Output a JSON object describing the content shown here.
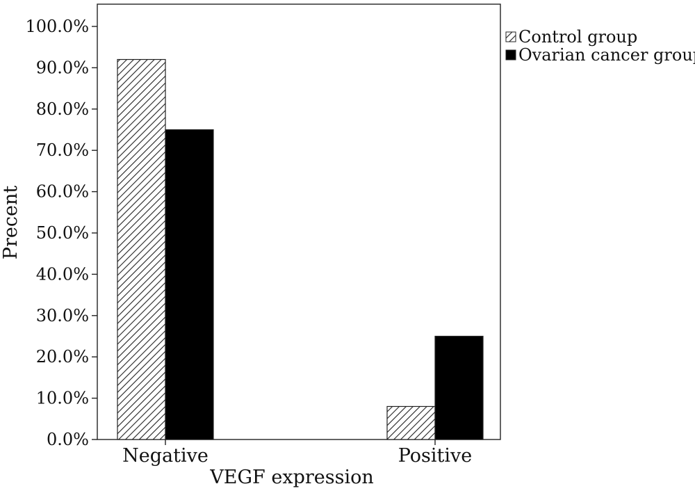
{
  "chart_data": {
    "type": "bar",
    "categories": [
      "Negative",
      "Positive"
    ],
    "series": [
      {
        "name": "Control group",
        "values": [
          92.0,
          8.0
        ],
        "fill": "hatch"
      },
      {
        "name": "Ovarian cancer group",
        "values": [
          75.0,
          25.0
        ],
        "fill": "#000000"
      }
    ],
    "xlabel": "VEGF expression",
    "ylabel": "Precent",
    "ylim": [
      0,
      100
    ],
    "yticks": [
      "0.0%",
      "10.0%",
      "20.0%",
      "30.0%",
      "40.0%",
      "50.0%",
      "60.0%",
      "70.0%",
      "80.0%",
      "90.0%",
      "100.0%"
    ],
    "grid": false,
    "legend_position": "top-right"
  }
}
